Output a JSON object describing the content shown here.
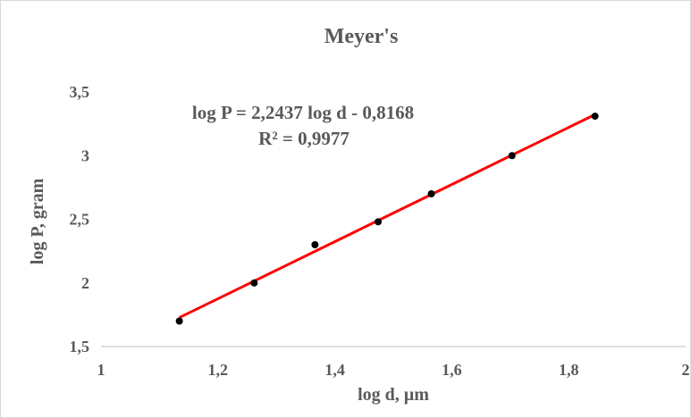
{
  "chart_data": {
    "type": "scatter",
    "title": "Meyer's",
    "xlabel": "log d, µm",
    "ylabel": "log P, gram",
    "xlim": [
      1,
      2
    ],
    "ylim": [
      1.5,
      3.5
    ],
    "x_ticks": [
      "1",
      "1,2",
      "1,4",
      "1,6",
      "1,8",
      "2"
    ],
    "y_ticks": [
      "1,5",
      "2",
      "2,5",
      "3",
      "3,5"
    ],
    "grid": false,
    "series": [
      {
        "x": [
          1.134,
          1.262,
          1.366,
          1.474,
          1.565,
          1.703,
          1.845
        ],
        "y": [
          1.7,
          2.0,
          2.3,
          2.48,
          2.7,
          3.0,
          3.31
        ],
        "marker_color": "#000000"
      }
    ],
    "trendline": {
      "type": "linear",
      "slope": 2.2437,
      "intercept": -0.8168,
      "color": "#ff0000",
      "equation_label": "log P = 2,2437 log d - 0,8168",
      "r2_label": "R² = 0,9977"
    }
  }
}
